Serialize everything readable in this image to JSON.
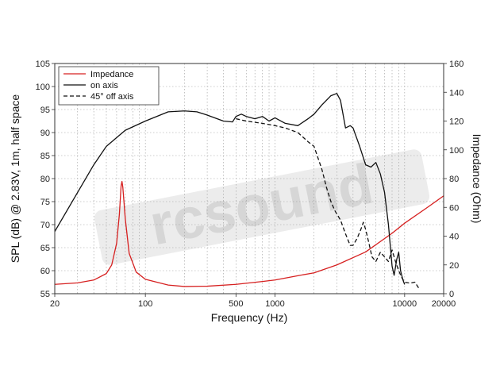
{
  "chart_data": {
    "type": "line",
    "xscale": "log",
    "xlim": [
      20,
      20000
    ],
    "ylim": [
      55,
      105
    ],
    "y2lim": [
      0,
      160
    ],
    "xlabel": "Frequency (Hz)",
    "ylabel": "SPL (dB) @ 2.83V, 1m, half space",
    "y2label": "Impedance (Ohm)",
    "x_ticks": [
      {
        "value": 20,
        "label": "20"
      },
      {
        "value": 100,
        "label": "100"
      },
      {
        "value": 500,
        "label": "500"
      },
      {
        "value": 1000,
        "label": "1000"
      },
      {
        "value": 10000,
        "label": "10000"
      },
      {
        "value": 20000,
        "label": "20000"
      }
    ],
    "y_ticks": [
      "55",
      "60",
      "65",
      "70",
      "75",
      "80",
      "85",
      "90",
      "95",
      "100",
      "105"
    ],
    "y2_ticks": [
      "0",
      "20",
      "40",
      "60",
      "80",
      "100",
      "120",
      "140",
      "160"
    ],
    "grid": true,
    "legend_position": "top-left",
    "watermark": "rcsound",
    "series": [
      {
        "name": "Impedance",
        "axis": "right",
        "color": "#d62020",
        "dash": "solid",
        "points": [
          [
            20,
            6.5
          ],
          [
            30,
            7.5
          ],
          [
            40,
            9.5
          ],
          [
            50,
            14
          ],
          [
            55,
            20
          ],
          [
            60,
            35
          ],
          [
            63,
            55
          ],
          [
            65,
            75
          ],
          [
            66,
            78
          ],
          [
            67,
            74
          ],
          [
            70,
            52
          ],
          [
            75,
            28
          ],
          [
            85,
            15
          ],
          [
            100,
            10
          ],
          [
            150,
            6
          ],
          [
            200,
            5
          ],
          [
            300,
            5.2
          ],
          [
            500,
            6.5
          ],
          [
            800,
            8.5
          ],
          [
            1000,
            9.5
          ],
          [
            1500,
            12.5
          ],
          [
            2000,
            14.5
          ],
          [
            3000,
            20
          ],
          [
            5000,
            29
          ],
          [
            8000,
            42
          ],
          [
            10000,
            49
          ],
          [
            15000,
            60
          ],
          [
            20000,
            68
          ]
        ]
      },
      {
        "name": "on axis",
        "axis": "left",
        "color": "#111111",
        "dash": "solid",
        "points": [
          [
            20,
            68.5
          ],
          [
            30,
            77
          ],
          [
            40,
            83
          ],
          [
            50,
            87
          ],
          [
            70,
            90.5
          ],
          [
            100,
            92.5
          ],
          [
            150,
            94.5
          ],
          [
            200,
            94.7
          ],
          [
            250,
            94.5
          ],
          [
            300,
            93.8
          ],
          [
            400,
            92.5
          ],
          [
            470,
            92.3
          ],
          [
            500,
            93.5
          ],
          [
            550,
            94
          ],
          [
            600,
            93.5
          ],
          [
            700,
            93
          ],
          [
            800,
            93.5
          ],
          [
            900,
            92.5
          ],
          [
            1000,
            93.2
          ],
          [
            1200,
            92
          ],
          [
            1500,
            91.5
          ],
          [
            1800,
            93
          ],
          [
            2000,
            94
          ],
          [
            2300,
            96
          ],
          [
            2700,
            98
          ],
          [
            3000,
            98.5
          ],
          [
            3200,
            97
          ],
          [
            3500,
            91
          ],
          [
            3800,
            91.5
          ],
          [
            4000,
            91
          ],
          [
            4500,
            87
          ],
          [
            5000,
            83
          ],
          [
            5500,
            82.5
          ],
          [
            6000,
            83.5
          ],
          [
            6500,
            81
          ],
          [
            7000,
            77
          ],
          [
            7500,
            70
          ],
          [
            8000,
            61
          ],
          [
            8300,
            59
          ],
          [
            8700,
            62.5
          ],
          [
            9000,
            64
          ],
          [
            9300,
            60
          ],
          [
            9700,
            58
          ],
          [
            10000,
            57
          ]
        ]
      },
      {
        "name": "45° off axis",
        "axis": "left",
        "color": "#111111",
        "dash": "dashed",
        "points": [
          [
            500,
            93
          ],
          [
            600,
            92.5
          ],
          [
            800,
            92
          ],
          [
            1000,
            91.5
          ],
          [
            1200,
            91
          ],
          [
            1500,
            90
          ],
          [
            1800,
            88
          ],
          [
            2000,
            87
          ],
          [
            2300,
            82
          ],
          [
            2500,
            78
          ],
          [
            2700,
            75
          ],
          [
            2900,
            73
          ],
          [
            3200,
            71
          ],
          [
            3500,
            68
          ],
          [
            3800,
            65.5
          ],
          [
            4000,
            65.5
          ],
          [
            4300,
            67
          ],
          [
            4600,
            69
          ],
          [
            4800,
            70.5
          ],
          [
            5000,
            69
          ],
          [
            5300,
            66
          ],
          [
            5600,
            63
          ],
          [
            6000,
            62
          ],
          [
            6500,
            64
          ],
          [
            7000,
            63
          ],
          [
            7500,
            62
          ],
          [
            8000,
            64.5
          ],
          [
            8500,
            62
          ],
          [
            9000,
            60
          ],
          [
            9500,
            58.5
          ],
          [
            10000,
            57.5
          ],
          [
            11000,
            57.3
          ],
          [
            12000,
            57.5
          ],
          [
            13000,
            56
          ]
        ]
      }
    ]
  }
}
